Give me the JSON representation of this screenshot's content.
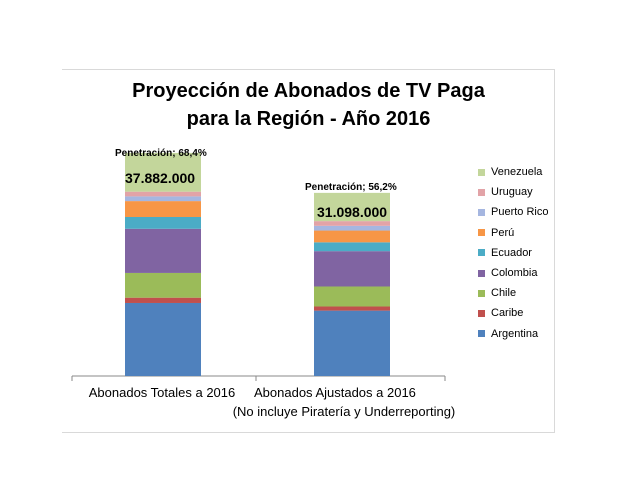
{
  "chart_data": {
    "type": "bar",
    "stacked": true,
    "title": "Proyección de Abonados de TV Paga",
    "subtitle": "para la Región - Año 2016",
    "categories": [
      "Abonados Totales a 2016",
      "Abonados Ajustados a 2016"
    ],
    "category_notes": [
      "",
      "(No incluye Piratería y Underreporting)"
    ],
    "totals": [
      "37.882.000",
      "31.098.000"
    ],
    "penetration": [
      "Penetración; 68,4%",
      "Penetración; 56,2%"
    ],
    "series": [
      {
        "name": "Argentina",
        "color": "#4f81bd",
        "values": [
          12400000,
          11100000
        ]
      },
      {
        "name": "Caribe",
        "color": "#c0504d",
        "values": [
          900000,
          700000
        ]
      },
      {
        "name": "Chile",
        "color": "#9bbb59",
        "values": [
          4200000,
          3400000
        ]
      },
      {
        "name": "Colombia",
        "color": "#8064a2",
        "values": [
          7500000,
          6000000
        ]
      },
      {
        "name": "Ecuador",
        "color": "#4bacc6",
        "values": [
          2000000,
          1500000
        ]
      },
      {
        "name": "Perú",
        "color": "#f79646",
        "values": [
          2700000,
          2000000
        ]
      },
      {
        "name": "Puerto Rico",
        "color": "#a5b6e0",
        "values": [
          800000,
          800000
        ]
      },
      {
        "name": "Uruguay",
        "color": "#e2a3a7",
        "values": [
          800000,
          800000
        ]
      },
      {
        "name": "Venezuela",
        "color": "#c3d69b",
        "values": [
          6582000,
          4798000
        ]
      }
    ],
    "ylim": [
      0,
      45000000
    ],
    "grid": false,
    "legend_position": "right"
  }
}
